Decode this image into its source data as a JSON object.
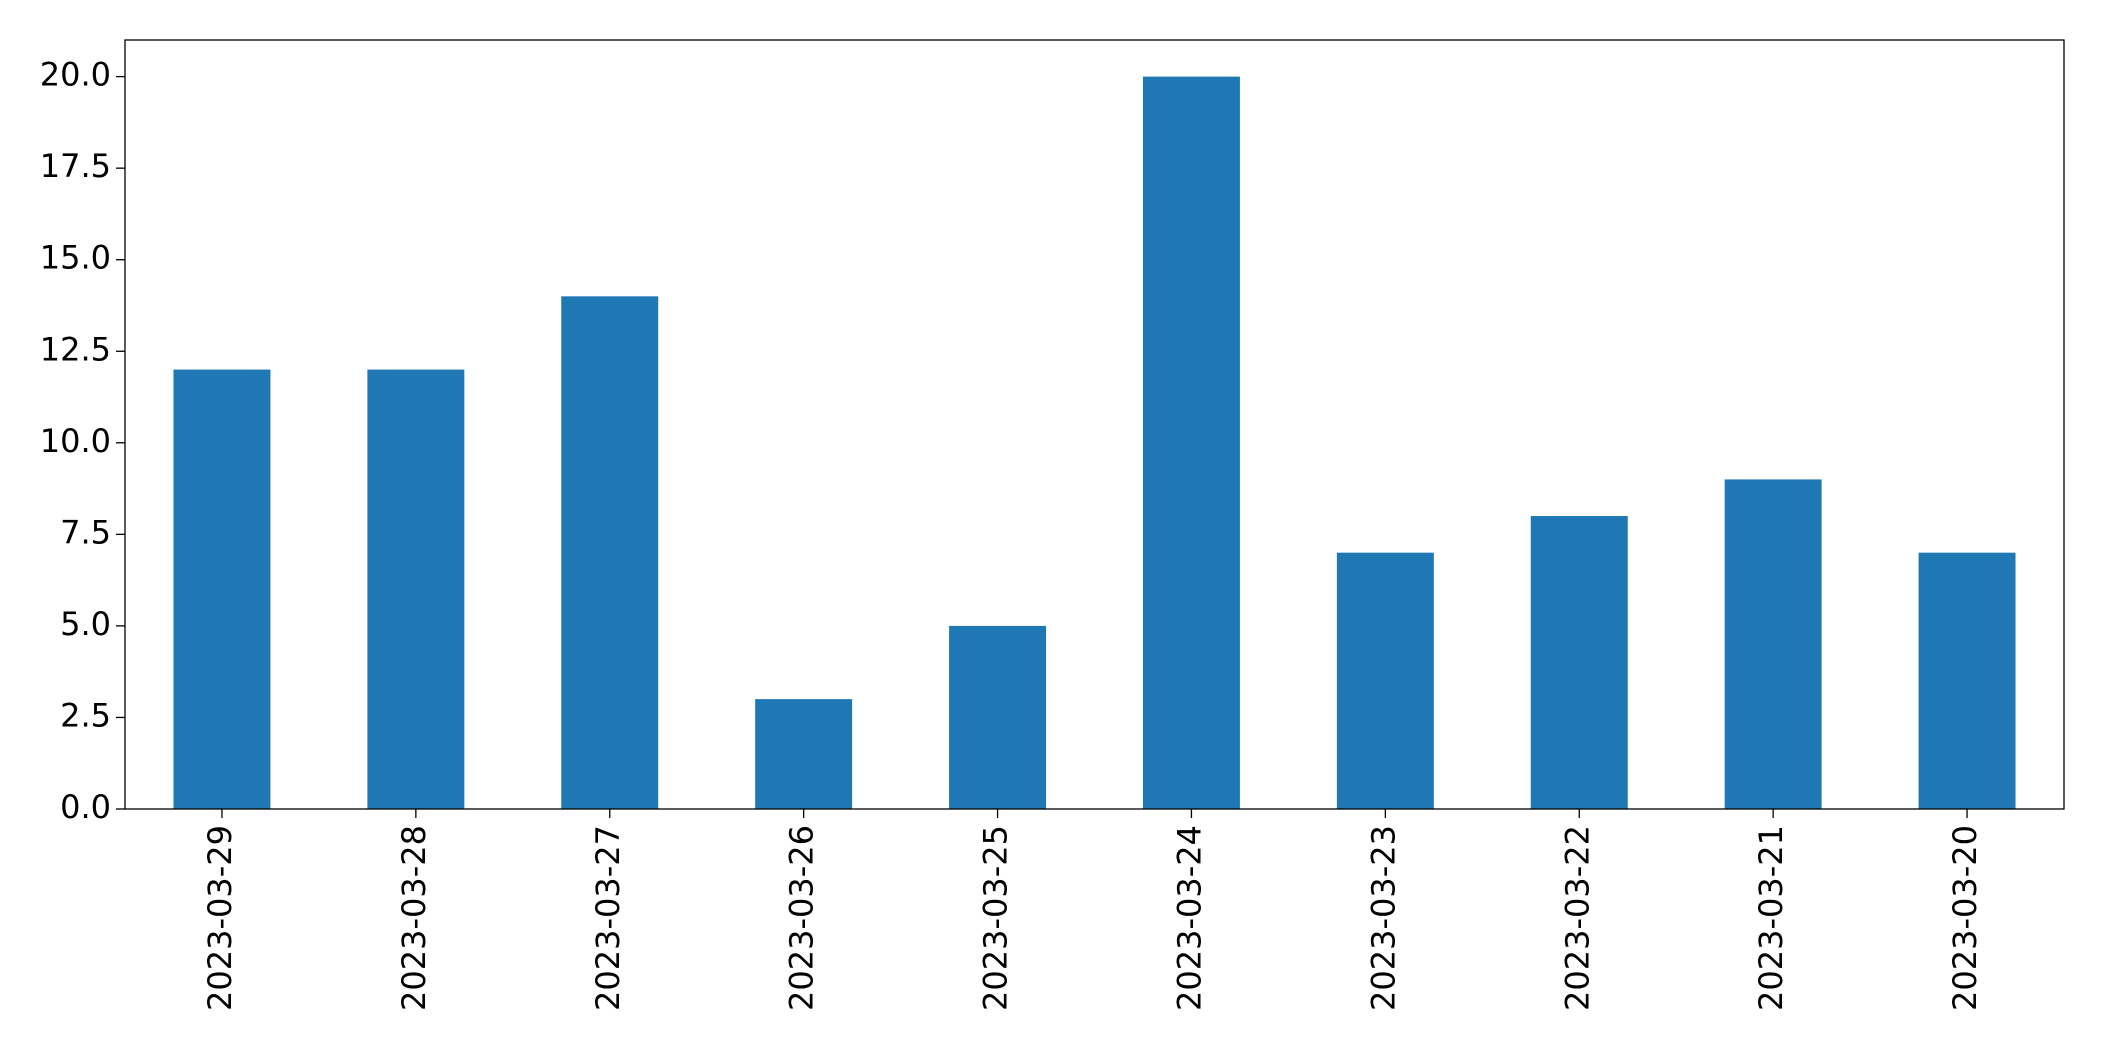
{
  "chart_data": {
    "type": "bar",
    "categories": [
      "2023-03-29",
      "2023-03-28",
      "2023-03-27",
      "2023-03-26",
      "2023-03-25",
      "2023-03-24",
      "2023-03-23",
      "2023-03-22",
      "2023-03-21",
      "2023-03-20"
    ],
    "values": [
      12,
      12,
      14,
      3,
      5,
      20,
      7,
      8,
      9,
      7
    ],
    "color": "#1f77b4",
    "ylim": [
      0,
      21
    ],
    "yticks": [
      {
        "value": 0,
        "label": "0.0"
      },
      {
        "value": 2.5,
        "label": "2.5"
      },
      {
        "value": 5,
        "label": "5.0"
      },
      {
        "value": 7.5,
        "label": "7.5"
      },
      {
        "value": 10,
        "label": "10.0"
      },
      {
        "value": 12.5,
        "label": "12.5"
      },
      {
        "value": 15,
        "label": "15.0"
      },
      {
        "value": 17.5,
        "label": "17.5"
      },
      {
        "value": 20,
        "label": "20.0"
      }
    ],
    "grid": false
  }
}
